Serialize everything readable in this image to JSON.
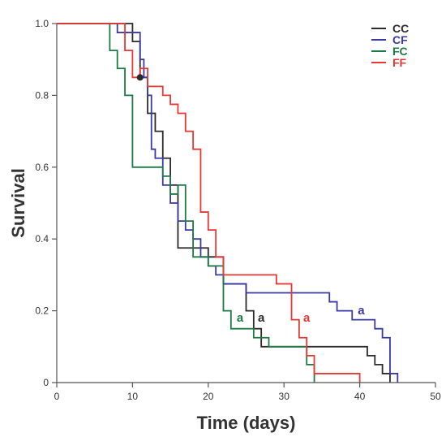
{
  "chart_data": {
    "type": "line",
    "step": true,
    "xlabel": "Time (days)",
    "ylabel": "Survival",
    "xlim": [
      0,
      50
    ],
    "ylim": [
      0,
      1.0
    ],
    "x_ticks": [
      0,
      10,
      20,
      30,
      40,
      50
    ],
    "y_ticks": [
      0,
      0.2,
      0.4,
      0.6,
      0.8,
      1.0
    ],
    "y_tick_labels": [
      "0",
      "0.2",
      "0.4",
      "0.6",
      "0.8",
      "1.0"
    ],
    "legend_position": "top-right",
    "series": [
      {
        "name": "CC",
        "color": "#2b2b2b",
        "times": [
          0,
          10,
          11,
          12,
          13,
          14,
          15,
          16,
          20,
          22,
          25,
          26,
          27,
          41,
          42,
          43,
          44
        ],
        "values": [
          1.0,
          0.95,
          0.85,
          0.75,
          0.7,
          0.625,
          0.55,
          0.375,
          0.35,
          0.275,
          0.2,
          0.15,
          0.1,
          0.075,
          0.05,
          0.025,
          0.0
        ]
      },
      {
        "name": "CF",
        "color": "#3a3aa3",
        "times": [
          0,
          8,
          11,
          11.5,
          12,
          12.5,
          13,
          14,
          15,
          16,
          17,
          18,
          19,
          20,
          21,
          22,
          25,
          36,
          37,
          39,
          42,
          43,
          44,
          45
        ],
        "values": [
          1.0,
          0.975,
          0.9,
          0.85,
          0.8,
          0.65,
          0.625,
          0.55,
          0.5,
          0.45,
          0.425,
          0.4,
          0.35,
          0.325,
          0.3,
          0.275,
          0.25,
          0.225,
          0.2,
          0.175,
          0.15,
          0.125,
          0.025,
          0.0
        ]
      },
      {
        "name": "FC",
        "color": "#1e7a44",
        "times": [
          0,
          7,
          8,
          9,
          10,
          14,
          15,
          16,
          17,
          18,
          20,
          22,
          23,
          26,
          28,
          33,
          34
        ],
        "values": [
          1.0,
          0.925,
          0.875,
          0.8,
          0.6,
          0.575,
          0.525,
          0.55,
          0.45,
          0.35,
          0.325,
          0.2,
          0.15,
          0.125,
          0.1,
          0.05,
          0.0
        ]
      },
      {
        "name": "FF",
        "color": "#e53935",
        "times": [
          0,
          9,
          10,
          11,
          12,
          14,
          15,
          16,
          17,
          18,
          19,
          20,
          21,
          22,
          29,
          31,
          32,
          33,
          34,
          40
        ],
        "values": [
          1.0,
          0.925,
          0.85,
          0.875,
          0.825,
          0.8,
          0.775,
          0.75,
          0.7,
          0.65,
          0.475,
          0.425,
          0.35,
          0.3,
          0.275,
          0.175,
          0.125,
          0.075,
          0.025,
          0.0
        ]
      }
    ],
    "censor_marks": [
      {
        "series": "CC",
        "x": 11,
        "y": 0.85
      }
    ],
    "annotations": [
      {
        "text": "a",
        "x": 24.2,
        "y": 0.17,
        "color": "#1e7a44"
      },
      {
        "text": "a",
        "x": 27.0,
        "y": 0.17,
        "color": "#2b2b2b"
      },
      {
        "text": "a",
        "x": 33.0,
        "y": 0.17,
        "color": "#e53935"
      },
      {
        "text": "a",
        "x": 40.2,
        "y": 0.19,
        "color": "#3a3aa3"
      }
    ],
    "axis_color": "#555555"
  }
}
